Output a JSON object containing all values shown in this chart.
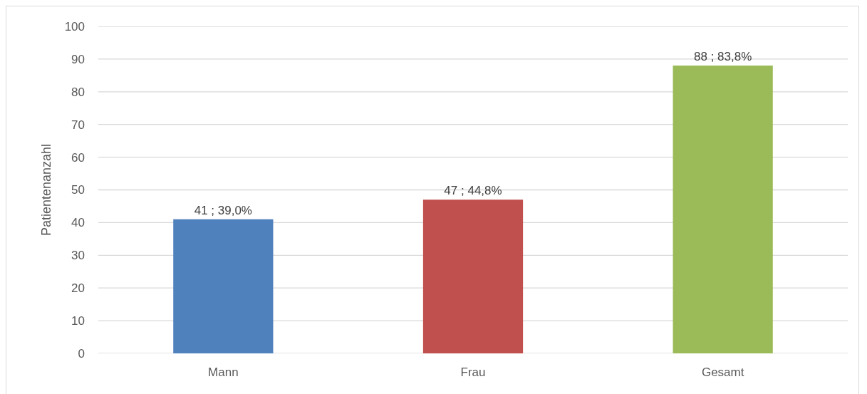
{
  "chart_data": {
    "type": "bar",
    "ylabel": "Patientenanzahl",
    "categories": [
      "Mann",
      "Frau",
      "Gesamt"
    ],
    "values": [
      41,
      47,
      88
    ],
    "colors": [
      "#4f81bd",
      "#c0504d",
      "#9bbb59"
    ],
    "value_labels": [
      "41 ; 39,0%",
      "47 ; 44,8%",
      "88 ; 83,8%"
    ],
    "ylim": [
      0,
      100
    ],
    "yticks": [
      0,
      10,
      20,
      30,
      40,
      50,
      60,
      70,
      80,
      90,
      100
    ],
    "grid": "y"
  }
}
